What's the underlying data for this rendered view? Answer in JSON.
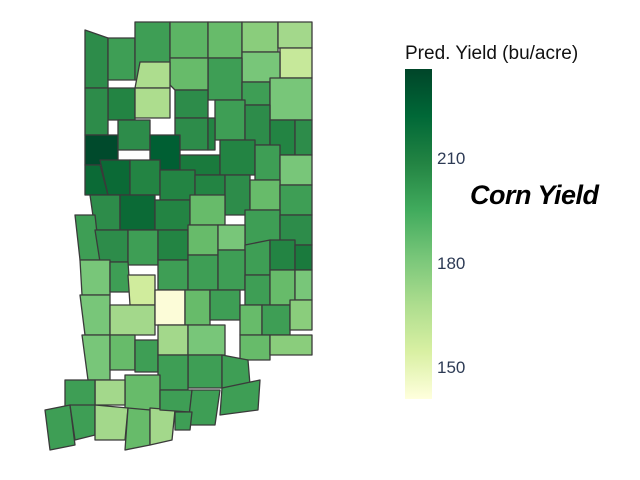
{
  "legend": {
    "title": "Pred. Yield (bu/acre)",
    "min": 141,
    "max": 236,
    "ticks": [
      210,
      180,
      150
    ],
    "gradient": [
      "#ffffdd",
      "#d9f0a3",
      "#addd8e",
      "#78c679",
      "#41ab5d",
      "#238443",
      "#006837",
      "#004529"
    ]
  },
  "caption": "Corn Yield",
  "colors": {
    "county_border": "#3a3a3a",
    "tick_text": "#2d3b55",
    "background": "#ffffff"
  }
}
